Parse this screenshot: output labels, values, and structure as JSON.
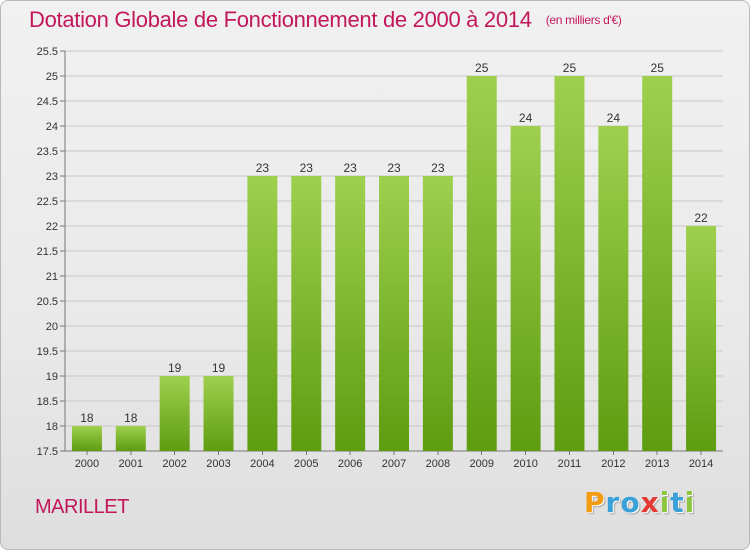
{
  "title": "Dotation Globale de Fonctionnement de 2000 à 2014",
  "subtitle": "(en milliers d'€)",
  "commune": "MARILLET",
  "logo": {
    "text": "Proxiti",
    "letters": [
      {
        "ch": "P",
        "color": "#f39c12"
      },
      {
        "ch": "r",
        "color": "#3aa0d8"
      },
      {
        "ch": "o",
        "color": "#3aa0d8"
      },
      {
        "ch": "x",
        "color": "#e53935"
      },
      {
        "ch": "i",
        "color": "#8cc63f"
      },
      {
        "ch": "t",
        "color": "#3aa0d8"
      },
      {
        "ch": "i",
        "color": "#8cc63f"
      }
    ]
  },
  "colors": {
    "accent": "#c2185b",
    "bar_top": "#9ed04e",
    "bar_bottom": "#5e9c10",
    "grid": "#c8c8c8"
  },
  "chart_data": {
    "type": "bar",
    "categories": [
      "2000",
      "2001",
      "2002",
      "2003",
      "2004",
      "2005",
      "2006",
      "2007",
      "2008",
      "2009",
      "2010",
      "2011",
      "2012",
      "2013",
      "2014"
    ],
    "values": [
      18,
      18,
      19,
      19,
      23,
      23,
      23,
      23,
      23,
      25,
      24,
      25,
      24,
      25,
      22
    ],
    "data_labels": [
      "18",
      "18",
      "19",
      "19",
      "23",
      "23",
      "23",
      "23",
      "23",
      "25",
      "24",
      "25",
      "24",
      "25",
      "22"
    ],
    "ylim": [
      17.5,
      25.5
    ],
    "y_ticks": [
      17.5,
      18,
      18.5,
      19,
      19.5,
      20,
      20.5,
      21,
      21.5,
      22,
      22.5,
      23,
      23.5,
      24,
      24.5,
      25,
      25.5
    ],
    "y_tick_labels": [
      "17.5",
      "18",
      "18.5",
      "19",
      "19.5",
      "20",
      "20.5",
      "21",
      "21.5",
      "22",
      "22.5",
      "23",
      "23.5",
      "24",
      "24.5",
      "25",
      "25.5"
    ],
    "grid": true,
    "xlabel": "",
    "ylabel": ""
  }
}
